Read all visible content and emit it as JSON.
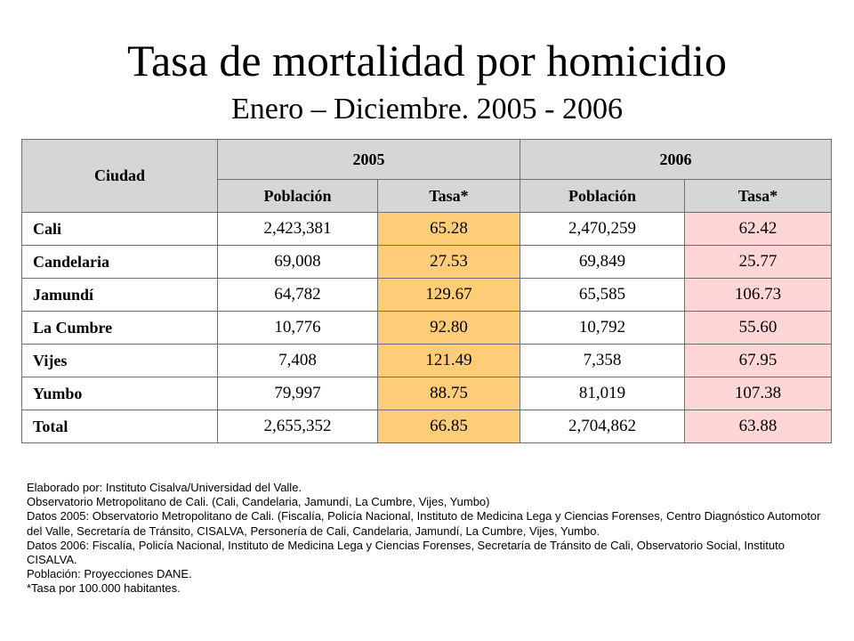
{
  "title": "Tasa de mortalidad por homicidio",
  "subtitle": "Enero – Diciembre.  2005 - 2006",
  "table": {
    "city_header": "Ciudad",
    "years": [
      "2005",
      "2006"
    ],
    "subheaders": [
      "Población",
      "Tasa*",
      "Población",
      "Tasa*"
    ],
    "rows": [
      [
        "Cali",
        "2,423,381",
        "65.28",
        "2,470,259",
        "62.42"
      ],
      [
        "Candelaria",
        "69,008",
        "27.53",
        "69,849",
        "25.77"
      ],
      [
        "Jamundí",
        "64,782",
        "129.67",
        "65,585",
        "106.73"
      ],
      [
        "La Cumbre",
        "10,776",
        "92.80",
        "10,792",
        "55.60"
      ],
      [
        "Vijes",
        "7,408",
        "121.49",
        "7,358",
        "67.95"
      ],
      [
        "Yumbo",
        "79,997",
        "88.75",
        "81,019",
        "107.38"
      ],
      [
        "Total",
        "2,655,352",
        "66.85",
        "2,704,862",
        "63.88"
      ]
    ]
  },
  "notes": [
    "Elaborado por: Instituto Cisalva/Universidad del Valle.",
    "Observatorio Metropolitano de Cali.  (Cali, Candelaria, Jamundí, La Cumbre, Vijes, Yumbo)",
    "Datos 2005:  Observatorio Metropolitano de Cali.  (Fiscalía, Policía Nacional, Instituto de Medicina Lega y Ciencias Forenses, Centro Diagnóstico Automotor del Valle, Secretaría de Tránsito, CISALVA, Personería de Cali,  Candelaria, Jamundí, La Cumbre, Vijes, Yumbo.",
    "Datos 2006: Fiscalía, Policía Nacional, Instituto de Medicina Lega y Ciencias Forenses,  Secretaría de Tránsito de Cali, Observatorio Social, Instituto CISALVA.",
    "Población: Proyecciones DANE.",
    "*Tasa por 100.000 habitantes."
  ],
  "colors": {
    "header_bg": "#d6d6d6",
    "rate_2005_bg": "#ffcc77",
    "rate_2006_bg": "#ffd6d6"
  }
}
